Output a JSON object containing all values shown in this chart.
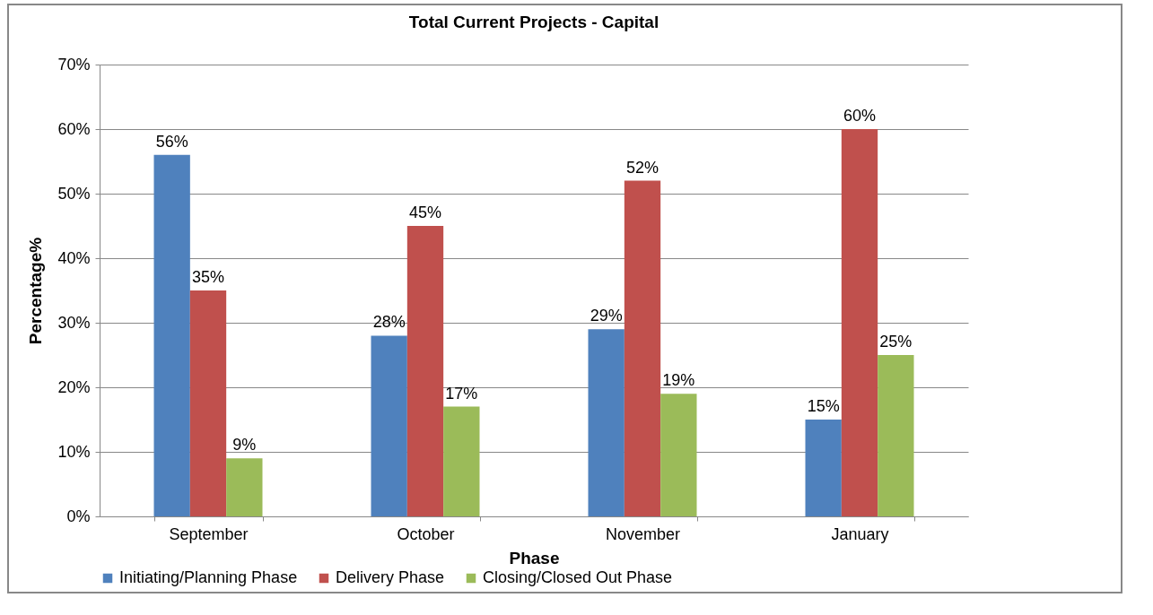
{
  "chart_data": {
    "type": "bar",
    "title": "Total Current Projects - Capital",
    "xlabel": "Phase",
    "ylabel": "Percentage%",
    "categories": [
      "September",
      "October",
      "November",
      "January"
    ],
    "series": [
      {
        "name": "Initiating/Planning Phase",
        "color": "#4f81bd",
        "values": [
          56,
          28,
          29,
          15
        ],
        "value_labels": [
          "56%",
          "28%",
          "29%",
          "15%"
        ]
      },
      {
        "name": "Delivery Phase",
        "color": "#c0504d",
        "values": [
          35,
          45,
          52,
          60
        ],
        "value_labels": [
          "35%",
          "45%",
          "52%",
          "60%"
        ]
      },
      {
        "name": "Closing/Closed Out Phase",
        "color": "#9bbb59",
        "values": [
          9,
          17,
          19,
          25
        ],
        "value_labels": [
          "9%",
          "17%",
          "19%",
          "25%"
        ]
      }
    ],
    "ylim": [
      0,
      70
    ],
    "yticks": [
      {
        "value": 0,
        "label": "0%"
      },
      {
        "value": 10,
        "label": "10%"
      },
      {
        "value": 20,
        "label": "20%"
      },
      {
        "value": 30,
        "label": "30%"
      },
      {
        "value": 40,
        "label": "40%"
      },
      {
        "value": 50,
        "label": "50%"
      },
      {
        "value": 60,
        "label": "60%"
      },
      {
        "value": 70,
        "label": "70%"
      }
    ],
    "grid": "y",
    "legend": "bottom"
  }
}
